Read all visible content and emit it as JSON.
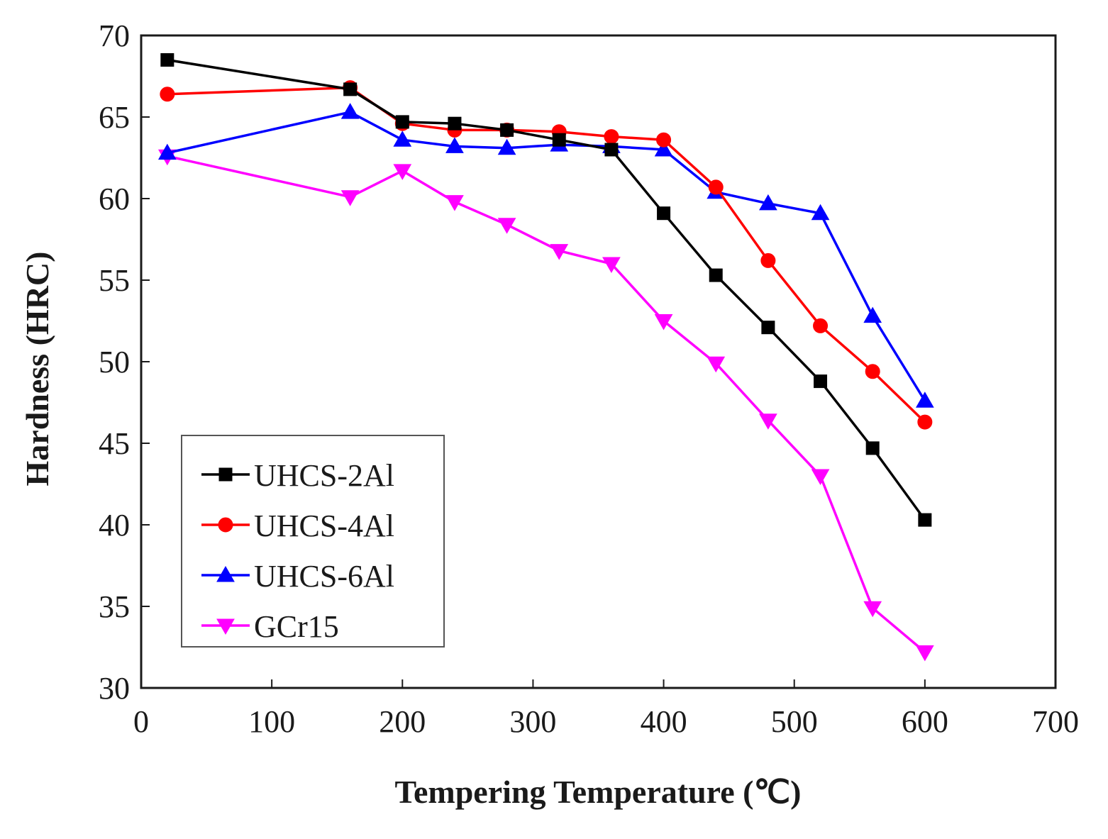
{
  "chart_data": {
    "type": "line",
    "title": "",
    "xlabel": "Tempering Temperature (℃)",
    "ylabel": "Hardness (HRC)",
    "xlim": [
      0,
      700
    ],
    "ylim": [
      30,
      70
    ],
    "xticks": [
      0,
      100,
      200,
      300,
      400,
      500,
      600,
      700
    ],
    "yticks": [
      30,
      35,
      40,
      45,
      50,
      55,
      60,
      65,
      70
    ],
    "grid": false,
    "legend_position": "bottom-left",
    "series": [
      {
        "name": "UHCS-2Al",
        "color": "#000000",
        "marker": "square",
        "x": [
          20,
          160,
          200,
          240,
          280,
          320,
          360,
          400,
          440,
          480,
          520,
          560,
          600
        ],
        "y": [
          68.5,
          66.7,
          64.7,
          64.6,
          64.2,
          63.6,
          63.0,
          59.1,
          55.3,
          52.1,
          48.8,
          44.7,
          40.3
        ]
      },
      {
        "name": "UHCS-4Al",
        "color": "#ff0000",
        "marker": "circle",
        "x": [
          20,
          160,
          200,
          240,
          280,
          320,
          360,
          400,
          440,
          480,
          520,
          560,
          600
        ],
        "y": [
          66.4,
          66.8,
          64.6,
          64.2,
          64.2,
          64.1,
          63.8,
          63.6,
          60.7,
          56.2,
          52.2,
          49.4,
          46.3
        ]
      },
      {
        "name": "UHCS-6Al",
        "color": "#0000ff",
        "marker": "triangle-up",
        "x": [
          20,
          160,
          200,
          240,
          280,
          320,
          360,
          400,
          440,
          480,
          520,
          560,
          600
        ],
        "y": [
          62.8,
          65.3,
          63.6,
          63.2,
          63.1,
          63.3,
          63.2,
          63.0,
          60.4,
          59.7,
          59.1,
          52.8,
          47.6
        ]
      },
      {
        "name": "GCr15",
        "color": "#ff00ff",
        "marker": "triangle-down",
        "x": [
          20,
          160,
          200,
          240,
          280,
          320,
          360,
          400,
          440,
          480,
          520,
          560,
          600
        ],
        "y": [
          62.6,
          60.1,
          61.7,
          59.8,
          58.4,
          56.8,
          56.0,
          52.5,
          49.9,
          46.4,
          43.0,
          34.9,
          32.2
        ]
      }
    ]
  }
}
